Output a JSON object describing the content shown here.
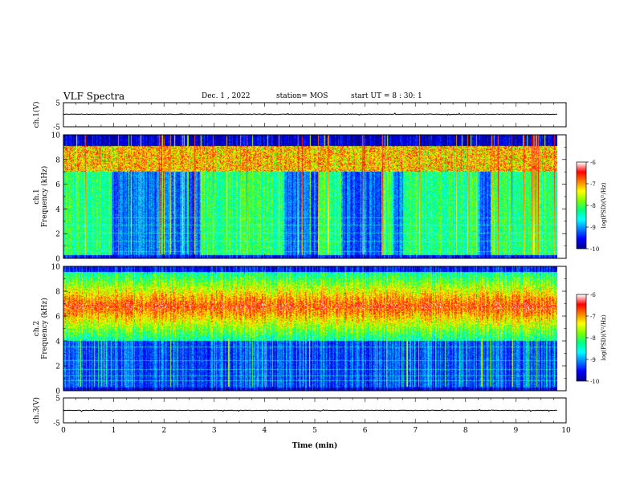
{
  "header": {
    "title": "VLF Spectra",
    "date": "Dec. 1 , 2022",
    "station": "station= MOS",
    "start": "start UT = 8 : 30: 1"
  },
  "colors": {
    "colormap": [
      "#00008b",
      "#0000ff",
      "#0080ff",
      "#00ffff",
      "#00ff80",
      "#80ff00",
      "#ffff00",
      "#ff8000",
      "#ff0000",
      "#ffffff"
    ],
    "spectrogram_bg": "#00008b"
  },
  "chart_data": [
    {
      "type": "line",
      "id": "ch1-waveform",
      "ylabel": "ch.1(V)",
      "ylim": [
        -5,
        5
      ],
      "yticks": [
        "5",
        "-5"
      ],
      "xlim": [
        0,
        10
      ]
    },
    {
      "type": "heatmap",
      "id": "ch1-spectrogram",
      "ylabel": "ch.1\nFrequency (kHz)",
      "ylim": [
        0,
        10
      ],
      "yticks": [
        "0",
        "2",
        "4",
        "6",
        "8",
        "10"
      ],
      "xlim": [
        0,
        10
      ],
      "data_xmax": 9.82,
      "colorbar": {
        "label": "log(PSD)(V²/Hz)",
        "range": [
          -10,
          -6
        ],
        "ticks": [
          "-6",
          "-7",
          "-8",
          "-9",
          "-10"
        ]
      },
      "quiet_intervals_min": [
        [
          0.97,
          2.72
        ],
        [
          4.38,
          5.05
        ],
        [
          5.52,
          6.32
        ],
        [
          6.55,
          6.74
        ],
        [
          8.25,
          8.5
        ]
      ],
      "emission_band_khz": [
        0.3,
        9.0
      ]
    },
    {
      "type": "heatmap",
      "id": "ch2-spectrogram",
      "ylabel": "ch.2\nFrequency (kHz)",
      "ylim": [
        0,
        10
      ],
      "yticks": [
        "0",
        "2",
        "4",
        "6",
        "8",
        "10"
      ],
      "xlim": [
        0,
        10
      ],
      "data_xmax": 9.82,
      "colorbar": {
        "label": "log(PSD)(V²/Hz)",
        "range": [
          -10,
          -6
        ],
        "ticks": [
          "-6",
          "-7",
          "-8",
          "-9",
          "-10"
        ]
      },
      "emission_band_khz": [
        4.0,
        9.5
      ],
      "peak_khz": 6.8
    },
    {
      "type": "line",
      "id": "ch3-waveform",
      "ylabel": "ch.3(V)",
      "ylim": [
        -5,
        5
      ],
      "yticks": [
        "5",
        "-5"
      ],
      "xlim": [
        0,
        10
      ],
      "xlabel": "Time (min)",
      "xticks": [
        "0",
        "1",
        "2",
        "3",
        "4",
        "5",
        "6",
        "7",
        "8",
        "9",
        "10"
      ]
    }
  ]
}
